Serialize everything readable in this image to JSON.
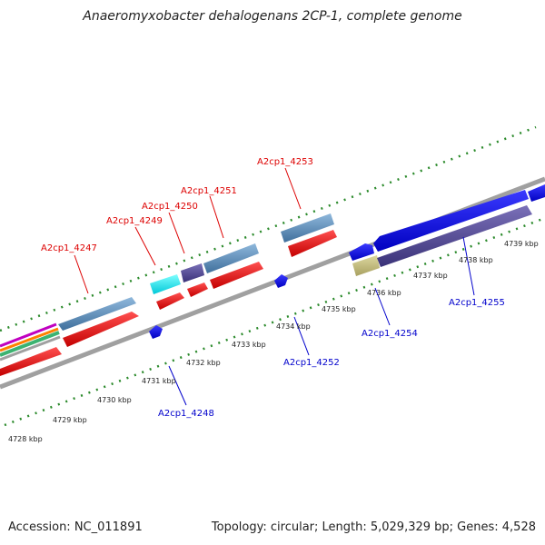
{
  "title": "Anaeromyxobacter dehalogenans 2CP-1, complete genome",
  "footer": {
    "accession": "Accession: NC_011891",
    "summary": "Topology: circular; Length: 5,029,329 bp; Genes: 4,528"
  },
  "colors": {
    "forward_label": "#dd0000",
    "reverse_label": "#0000cc",
    "axis": "#909090",
    "tick": "#2b7a2b"
  },
  "kbp_labels": [
    "4728 kbp",
    "4729 kbp",
    "4730 kbp",
    "4731 kbp",
    "4732 kbp",
    "4733 kbp",
    "4734 kbp",
    "4735 kbp",
    "4736 kbp",
    "4737 kbp",
    "4738 kbp",
    "4739 kbp"
  ],
  "genes": {
    "forward": [
      "A2cp1_4247",
      "A2cp1_4249",
      "A2cp1_4250",
      "A2cp1_4251",
      "A2cp1_4253"
    ],
    "reverse": [
      "A2cp1_4248",
      "A2cp1_4252",
      "A2cp1_4254",
      "A2cp1_4255"
    ]
  }
}
